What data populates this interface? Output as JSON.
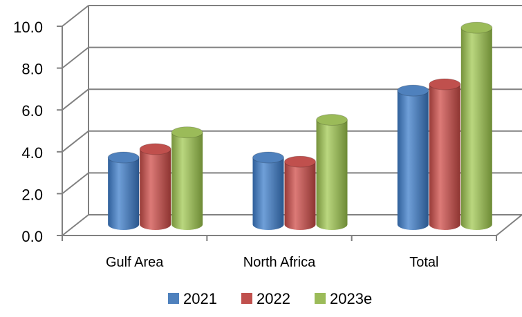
{
  "chart_data": {
    "type": "bar",
    "style": "3d-cylinder",
    "categories": [
      "Gulf Area",
      "North Africa",
      "Total"
    ],
    "series": [
      {
        "name": "2021",
        "color": "#4f81bd",
        "values": [
          3.2,
          3.2,
          6.4
        ]
      },
      {
        "name": "2022",
        "color": "#c0504d",
        "values": [
          3.6,
          3.0,
          6.7
        ]
      },
      {
        "name": "2023e",
        "color": "#9bbb59",
        "values": [
          4.4,
          5.0,
          9.4
        ]
      }
    ],
    "yticks": [
      "0.0",
      "2.0",
      "4.0",
      "6.0",
      "8.0",
      "10.0"
    ],
    "ylim": [
      0,
      10
    ],
    "grid": true,
    "legend": "bottom"
  }
}
